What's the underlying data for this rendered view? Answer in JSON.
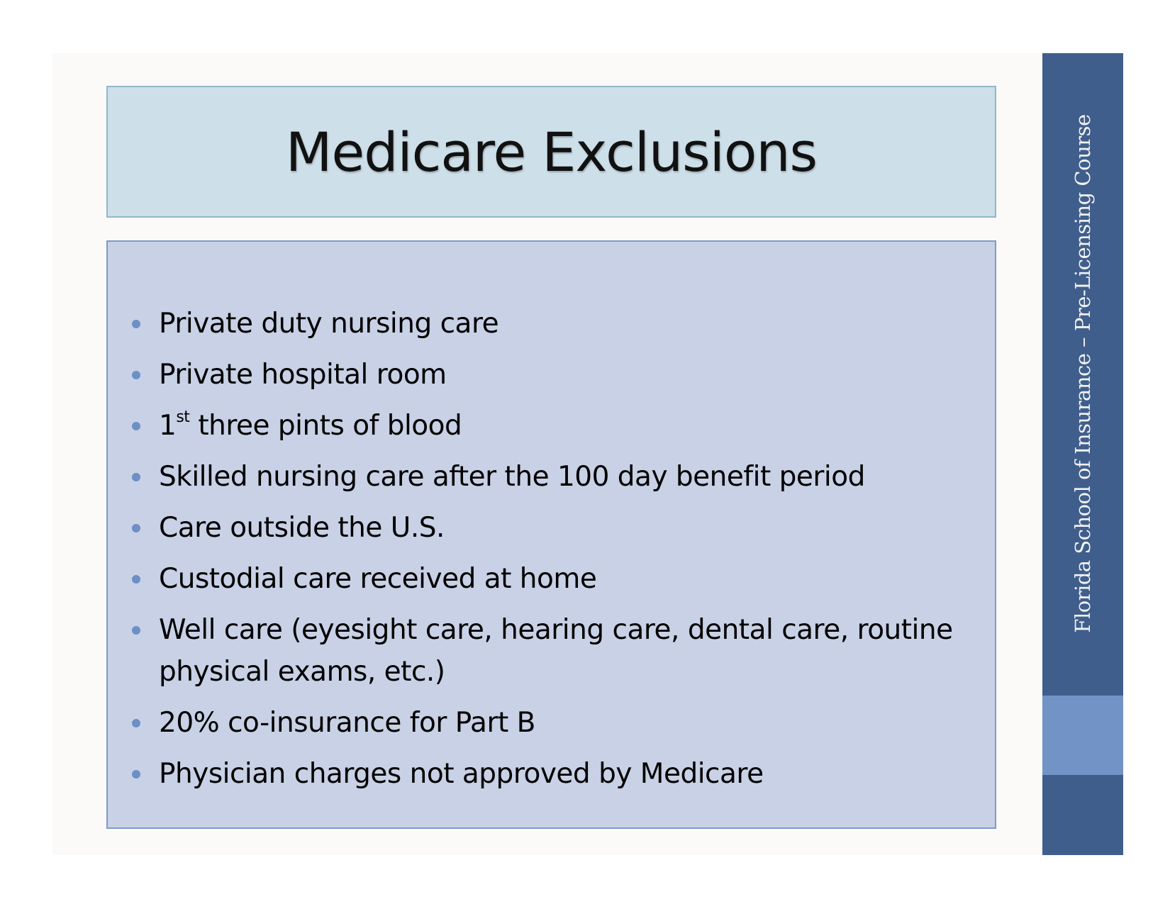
{
  "slide": {
    "title": "Medicare Exclusions",
    "bullets": [
      {
        "text": "Private duty nursing care"
      },
      {
        "text": "Private hospital room"
      },
      {
        "prefix": "1",
        "sup": "st",
        "text": " three pints of blood"
      },
      {
        "text": "Skilled nursing care after the 100 day benefit period"
      },
      {
        "text": "Care outside the U.S."
      },
      {
        "text": "Custodial care received at home"
      },
      {
        "text": "Well care (eyesight care, hearing care, dental care, routine physical exams, etc.)"
      },
      {
        "text": "20% co-insurance for Part B"
      },
      {
        "text": "Physician charges not approved by Medicare"
      }
    ]
  },
  "sidebar": {
    "text": "Florida School of Insurance – Pre-Licensing Course"
  },
  "colors": {
    "title_bg": "#cddfe9",
    "content_bg": "#c8d1e5",
    "sidebar": "#3f5e8c",
    "sidebar_band": "#7293c5",
    "bullet": "#6e8fc6"
  }
}
